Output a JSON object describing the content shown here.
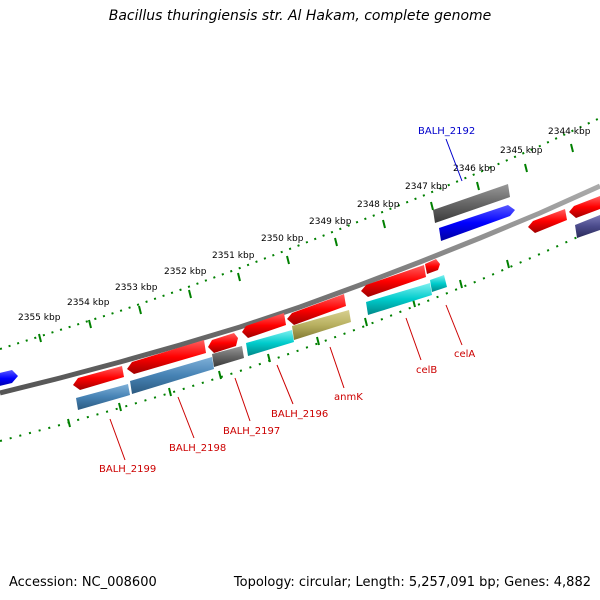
{
  "title": "Bacillus thuringiensis str. Al Hakam, complete genome",
  "footer": {
    "accession": "Accession: NC_008600",
    "topology": "Topology: circular; Length: 5,257,091 bp; Genes: 4,882"
  },
  "ticks": [
    "2344 kbp",
    "2345 kbp",
    "2346 kbp",
    "2347 kbp",
    "2348 kbp",
    "2349 kbp",
    "2350 kbp",
    "2351 kbp",
    "2352 kbp",
    "2353 kbp",
    "2354 kbp",
    "2355 kbp"
  ],
  "gene_labels": [
    "BALH_2192",
    "celA",
    "celB",
    "anmK",
    "BALH_2196",
    "BALH_2197",
    "BALH_2198",
    "BALH_2199"
  ],
  "colors": {
    "red": "#ff0000",
    "blue": "#0000ff",
    "gray": "#666666",
    "steel": "#4682b4",
    "cyan": "#00cccc",
    "khaki": "#b8b060",
    "slate": "#4a4a8a",
    "tick": "#008000",
    "label_red": "#cc0000",
    "label_blue": "#0000cc"
  }
}
